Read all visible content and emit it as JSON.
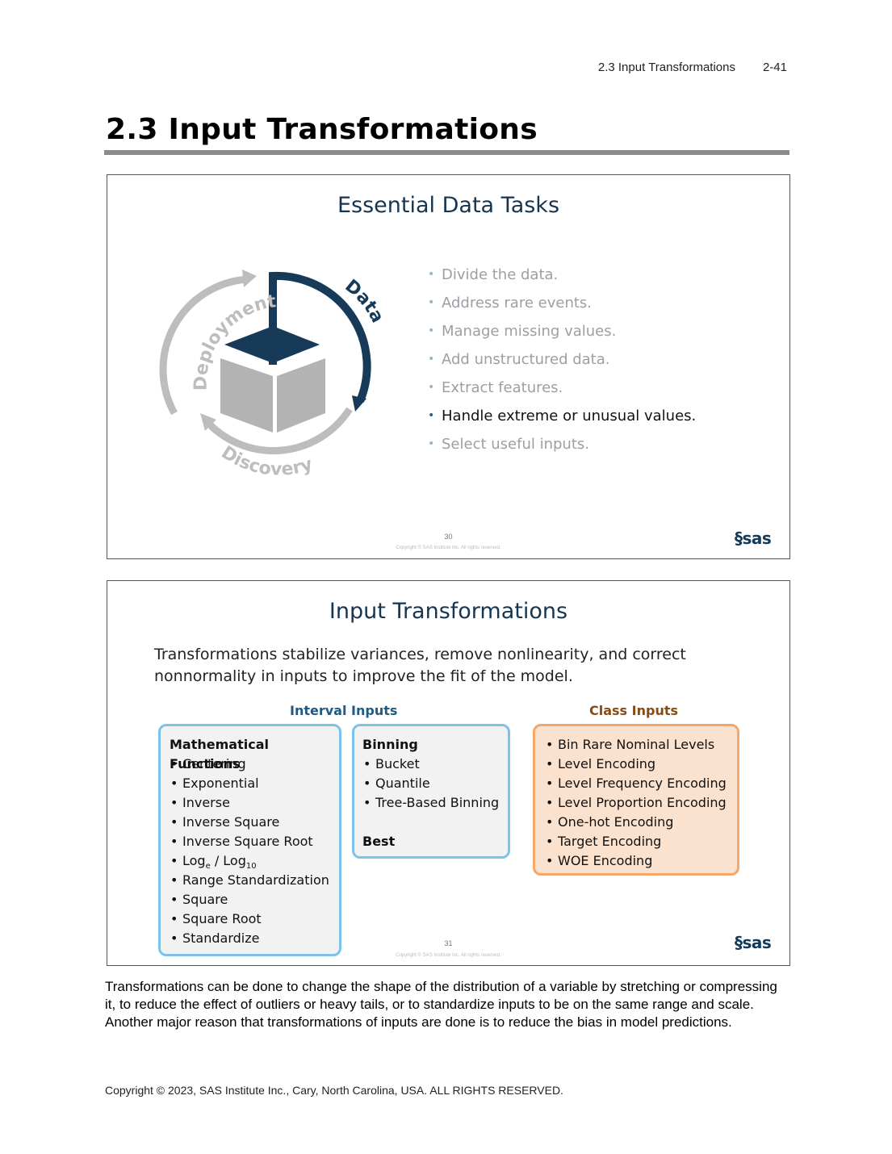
{
  "running_header": {
    "section": "2.3  Input Transformations",
    "page": "2-41"
  },
  "page_title": "2.3 Input Transformations",
  "slide1": {
    "title": "Essential Data Tasks",
    "cycle_labels": {
      "data": "Data",
      "deployment": "Deployment",
      "discovery": "Discovery"
    },
    "colors": {
      "active_arc": "#163a57",
      "inactive_arc": "#bdbdbd",
      "cube": "#b3b3b3",
      "cube_top": "#163a57"
    },
    "tasks": [
      {
        "text": "Divide the data.",
        "active": false
      },
      {
        "text": "Address rare events.",
        "active": false
      },
      {
        "text": "Manage missing values.",
        "active": false
      },
      {
        "text": "Add unstructured data.",
        "active": false
      },
      {
        "text": "Extract features.",
        "active": false
      },
      {
        "text": "Handle extreme or unusual values.",
        "active": true
      },
      {
        "text": "Select useful inputs.",
        "active": false
      }
    ],
    "slide_number": "30",
    "copyright": "Copyright © SAS Institute Inc. All rights reserved.",
    "logo": "sas"
  },
  "slide2": {
    "title": "Input Transformations",
    "intro": "Transformations stabilize variances, remove nonlinearity, and correct nonnormality in inputs to improve the fit of the model.",
    "interval_label": "Interval Inputs",
    "class_label": "Class Inputs",
    "math_box": {
      "heading": "Mathematical Functions",
      "items": [
        "Centering",
        "Exponential",
        "Inverse",
        "Inverse Square",
        "Inverse Square Root"
      ],
      "log_item": {
        "a": "Log",
        "a_sub": "e",
        "sep": " / ",
        "b": "Log",
        "b_sub": "10"
      },
      "items_after": [
        "Range Standardization",
        "Square",
        "Square Root",
        "Standardize"
      ]
    },
    "binning_box": {
      "heading": "Binning",
      "items": [
        "Bucket",
        "Quantile",
        "Tree-Based Binning"
      ],
      "heading2": "Best"
    },
    "class_box": {
      "items": [
        "Bin Rare Nominal Levels",
        "Level Encoding",
        "Level Frequency Encoding",
        "Level Proportion Encoding",
        "One-hot Encoding",
        "Target Encoding",
        "WOE Encoding"
      ]
    },
    "slide_number": "31",
    "copyright": "Copyright © SAS Institute Inc. All rights reserved.",
    "logo": "sas",
    "colors": {
      "interval_label": "#1f5a85",
      "class_label": "#8a4a12"
    }
  },
  "body_text": "Transformations can be done to change the shape of the distribution of a variable by stretching or compressing it, to reduce the effect of outliers or heavy tails, or to standardize inputs to be on the same range and scale. Another major reason that transformations of inputs are done is to reduce the bias in model predictions.",
  "copyright": "Copyright © 2023, SAS Institute Inc., Cary, North Carolina, USA. ALL RIGHTS RESERVED."
}
